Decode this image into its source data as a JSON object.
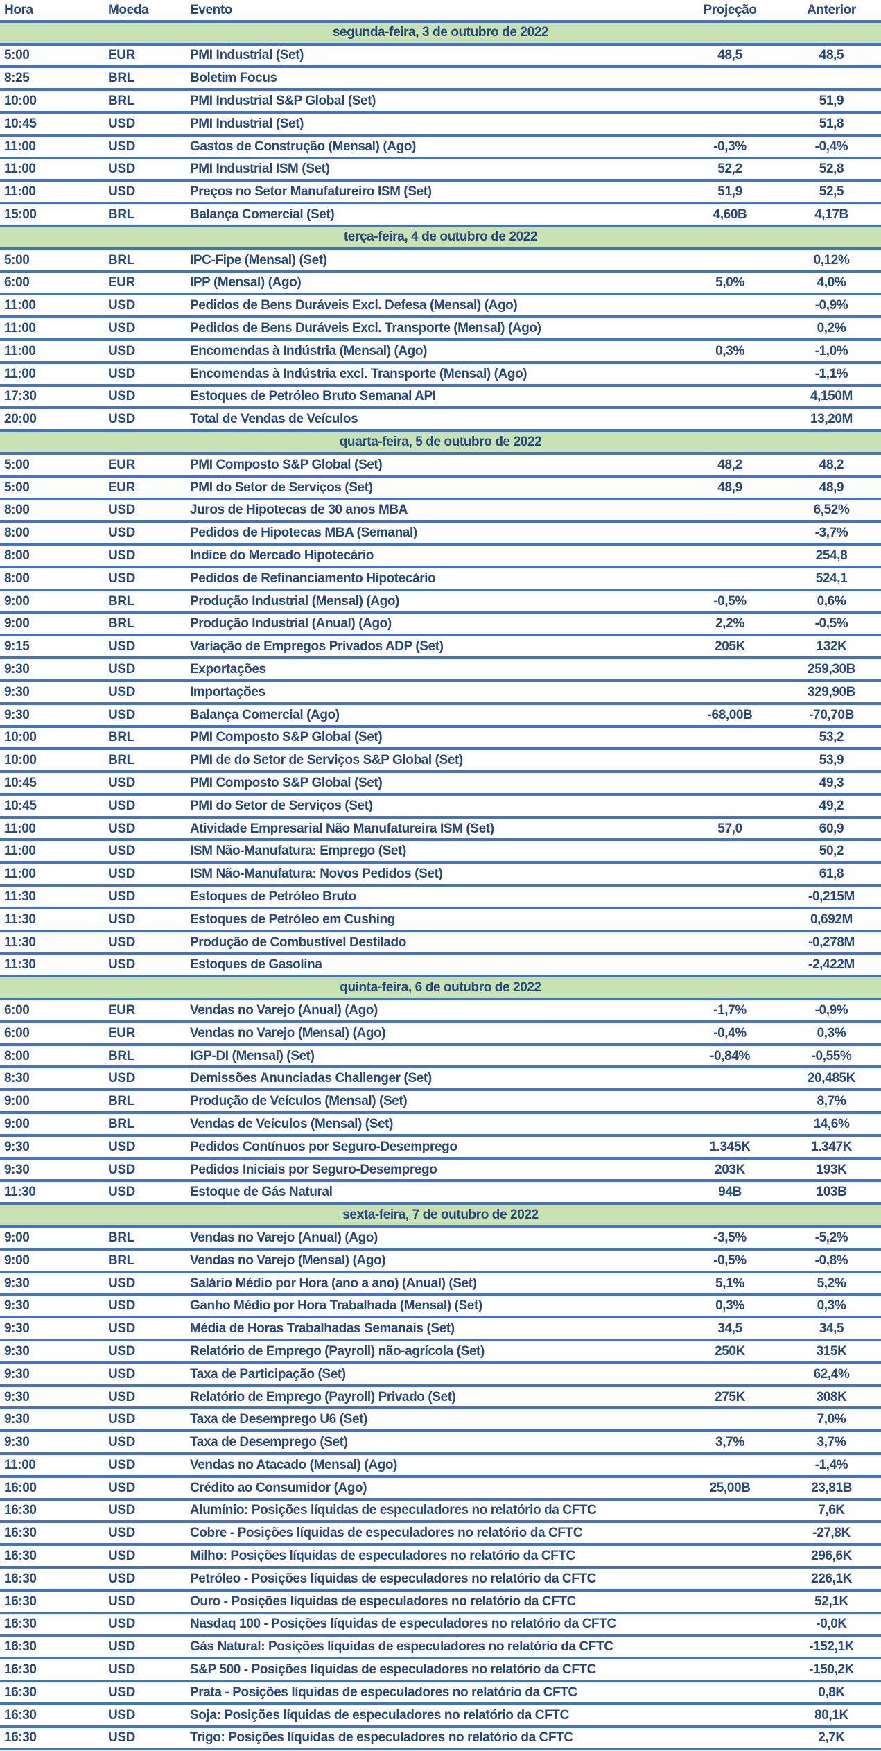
{
  "colors": {
    "border_blue": "#4472C4",
    "day_header_green": "#C8E2B3",
    "text_navy": "#25497F"
  },
  "table": {
    "columns": [
      "Hora",
      "Moeda",
      "Evento",
      "Projeção",
      "Anterior"
    ],
    "days": [
      {
        "header": "segunda-feira, 3 de outubro de 2022",
        "rows": [
          {
            "hora": "5:00",
            "moeda": "EUR",
            "evento": "PMI Industrial (Set)",
            "projecao": "48,5",
            "anterior": "48,5"
          },
          {
            "hora": "8:25",
            "moeda": "BRL",
            "evento": "Boletim Focus",
            "projecao": "",
            "anterior": ""
          },
          {
            "hora": "10:00",
            "moeda": "BRL",
            "evento": "PMI Industrial S&P Global (Set)",
            "projecao": "",
            "anterior": "51,9"
          },
          {
            "hora": "10:45",
            "moeda": "USD",
            "evento": "PMI Industrial (Set)",
            "projecao": "",
            "anterior": "51,8"
          },
          {
            "hora": "11:00",
            "moeda": "USD",
            "evento": "Gastos de Construção (Mensal) (Ago)",
            "projecao": "-0,3%",
            "anterior": "-0,4%"
          },
          {
            "hora": "11:00",
            "moeda": "USD",
            "evento": "PMI Industrial ISM (Set)",
            "projecao": "52,2",
            "anterior": "52,8"
          },
          {
            "hora": "11:00",
            "moeda": "USD",
            "evento": "Preços no Setor Manufatureiro ISM (Set)",
            "projecao": "51,9",
            "anterior": "52,5"
          },
          {
            "hora": "15:00",
            "moeda": "BRL",
            "evento": "Balança Comercial (Set)",
            "projecao": "4,60B",
            "anterior": "4,17B"
          }
        ]
      },
      {
        "header": "terça-feira, 4 de outubro de 2022",
        "rows": [
          {
            "hora": "5:00",
            "moeda": "BRL",
            "evento": "IPC-Fipe (Mensal) (Set)",
            "projecao": "",
            "anterior": "0,12%"
          },
          {
            "hora": "6:00",
            "moeda": "EUR",
            "evento": "IPP (Mensal) (Ago)",
            "projecao": "5,0%",
            "anterior": "4,0%"
          },
          {
            "hora": "11:00",
            "moeda": "USD",
            "evento": "Pedidos de Bens Duráveis Excl. Defesa (Mensal) (Ago)",
            "projecao": "",
            "anterior": "-0,9%"
          },
          {
            "hora": "11:00",
            "moeda": "USD",
            "evento": "Pedidos de Bens Duráveis Excl. Transporte (Mensal) (Ago)",
            "projecao": "",
            "anterior": "0,2%"
          },
          {
            "hora": "11:00",
            "moeda": "USD",
            "evento": "Encomendas à Indústria (Mensal) (Ago)",
            "projecao": "0,3%",
            "anterior": "-1,0%"
          },
          {
            "hora": "11:00",
            "moeda": "USD",
            "evento": "Encomendas à Indústria excl. Transporte (Mensal) (Ago)",
            "projecao": "",
            "anterior": "-1,1%"
          },
          {
            "hora": "17:30",
            "moeda": "USD",
            "evento": "Estoques de Petróleo Bruto Semanal API",
            "projecao": "",
            "anterior": "4,150M"
          },
          {
            "hora": "20:00",
            "moeda": "USD",
            "evento": "Total de Vendas de Veículos",
            "projecao": "",
            "anterior": "13,20M"
          }
        ]
      },
      {
        "header": "quarta-feira, 5 de outubro de 2022",
        "rows": [
          {
            "hora": "5:00",
            "moeda": "EUR",
            "evento": "PMI Composto S&P Global (Set)",
            "projecao": "48,2",
            "anterior": "48,2"
          },
          {
            "hora": "5:00",
            "moeda": "EUR",
            "evento": "PMI do Setor de Serviços (Set)",
            "projecao": "48,9",
            "anterior": "48,9"
          },
          {
            "hora": "8:00",
            "moeda": "USD",
            "evento": "Juros de Hipotecas de 30 anos MBA",
            "projecao": "",
            "anterior": "6,52%"
          },
          {
            "hora": "8:00",
            "moeda": "USD",
            "evento": "Pedidos de Hipotecas MBA (Semanal)",
            "projecao": "",
            "anterior": "-3,7%"
          },
          {
            "hora": "8:00",
            "moeda": "USD",
            "evento": "Índice do Mercado Hipotecário",
            "projecao": "",
            "anterior": "254,8"
          },
          {
            "hora": "8:00",
            "moeda": "USD",
            "evento": "Pedidos de Refinanciamento Hipotecário",
            "projecao": "",
            "anterior": "524,1"
          },
          {
            "hora": "9:00",
            "moeda": "BRL",
            "evento": "Produção Industrial (Mensal) (Ago)",
            "projecao": "-0,5%",
            "anterior": "0,6%"
          },
          {
            "hora": "9:00",
            "moeda": "BRL",
            "evento": "Produção Industrial (Anual) (Ago)",
            "projecao": "2,2%",
            "anterior": "-0,5%"
          },
          {
            "hora": "9:15",
            "moeda": "USD",
            "evento": "Variação de Empregos Privados ADP (Set)",
            "projecao": "205K",
            "anterior": "132K"
          },
          {
            "hora": "9:30",
            "moeda": "USD",
            "evento": "Exportações",
            "projecao": "",
            "anterior": "259,30B"
          },
          {
            "hora": "9:30",
            "moeda": "USD",
            "evento": "Importações",
            "projecao": "",
            "anterior": "329,90B"
          },
          {
            "hora": "9:30",
            "moeda": "USD",
            "evento": "Balança Comercial (Ago)",
            "projecao": "-68,00B",
            "anterior": "-70,70B"
          },
          {
            "hora": "10:00",
            "moeda": "BRL",
            "evento": "PMI Composto S&P Global (Set)",
            "projecao": "",
            "anterior": "53,2"
          },
          {
            "hora": "10:00",
            "moeda": "BRL",
            "evento": "PMI de do Setor de Serviços S&P Global (Set)",
            "projecao": "",
            "anterior": "53,9"
          },
          {
            "hora": "10:45",
            "moeda": "USD",
            "evento": "PMI Composto S&P Global (Set)",
            "projecao": "",
            "anterior": "49,3"
          },
          {
            "hora": "10:45",
            "moeda": "USD",
            "evento": "PMI do Setor de Serviços (Set)",
            "projecao": "",
            "anterior": "49,2"
          },
          {
            "hora": "11:00",
            "moeda": "USD",
            "evento": "Atividade Empresarial Não Manufatureira ISM (Set)",
            "projecao": "57,0",
            "anterior": "60,9"
          },
          {
            "hora": "11:00",
            "moeda": "USD",
            "evento": "ISM Não-Manufatura: Emprego (Set)",
            "projecao": "",
            "anterior": "50,2"
          },
          {
            "hora": "11:00",
            "moeda": "USD",
            "evento": "ISM Não-Manufatura: Novos Pedidos (Set)",
            "projecao": "",
            "anterior": "61,8"
          },
          {
            "hora": "11:30",
            "moeda": "USD",
            "evento": "Estoques de Petróleo Bruto",
            "projecao": "",
            "anterior": "-0,215M"
          },
          {
            "hora": "11:30",
            "moeda": "USD",
            "evento": "Estoques de Petróleo em Cushing",
            "projecao": "",
            "anterior": "0,692M"
          },
          {
            "hora": "11:30",
            "moeda": "USD",
            "evento": "Produção de Combustível Destilado",
            "projecao": "",
            "anterior": "-0,278M"
          },
          {
            "hora": "11:30",
            "moeda": "USD",
            "evento": "Estoques de Gasolina",
            "projecao": "",
            "anterior": "-2,422M"
          }
        ]
      },
      {
        "header": "quinta-feira, 6 de outubro de 2022",
        "rows": [
          {
            "hora": "6:00",
            "moeda": "EUR",
            "evento": "Vendas no Varejo (Anual) (Ago)",
            "projecao": "-1,7%",
            "anterior": "-0,9%"
          },
          {
            "hora": "6:00",
            "moeda": "EUR",
            "evento": "Vendas no Varejo (Mensal) (Ago)",
            "projecao": "-0,4%",
            "anterior": "0,3%"
          },
          {
            "hora": "8:00",
            "moeda": "BRL",
            "evento": "IGP-DI (Mensal) (Set)",
            "projecao": "-0,84%",
            "anterior": "-0,55%"
          },
          {
            "hora": "8:30",
            "moeda": "USD",
            "evento": "Demissões Anunciadas Challenger (Set)",
            "projecao": "",
            "anterior": "20,485K"
          },
          {
            "hora": "9:00",
            "moeda": "BRL",
            "evento": "Produção de Veículos (Mensal) (Set)",
            "projecao": "",
            "anterior": "8,7%"
          },
          {
            "hora": "9:00",
            "moeda": "BRL",
            "evento": "Vendas de Veículos (Mensal) (Set)",
            "projecao": "",
            "anterior": "14,6%"
          },
          {
            "hora": "9:30",
            "moeda": "USD",
            "evento": "Pedidos Contínuos por Seguro-Desemprego",
            "projecao": "1.345K",
            "anterior": "1.347K"
          },
          {
            "hora": "9:30",
            "moeda": "USD",
            "evento": "Pedidos Iniciais por Seguro-Desemprego",
            "projecao": "203K",
            "anterior": "193K"
          },
          {
            "hora": "11:30",
            "moeda": "USD",
            "evento": "Estoque de Gás Natural",
            "projecao": "94B",
            "anterior": "103B"
          }
        ]
      },
      {
        "header": "sexta-feira, 7 de outubro de 2022",
        "rows": [
          {
            "hora": "9:00",
            "moeda": "BRL",
            "evento": "Vendas no Varejo (Anual) (Ago)",
            "projecao": "-3,5%",
            "anterior": "-5,2%"
          },
          {
            "hora": "9:00",
            "moeda": "BRL",
            "evento": "Vendas no Varejo (Mensal) (Ago)",
            "projecao": "-0,5%",
            "anterior": "-0,8%"
          },
          {
            "hora": "9:30",
            "moeda": "USD",
            "evento": "Salário Médio por Hora (ano a ano) (Anual) (Set)",
            "projecao": "5,1%",
            "anterior": "5,2%"
          },
          {
            "hora": "9:30",
            "moeda": "USD",
            "evento": "Ganho Médio por Hora Trabalhada (Mensal) (Set)",
            "projecao": "0,3%",
            "anterior": "0,3%"
          },
          {
            "hora": "9:30",
            "moeda": "USD",
            "evento": "Média de Horas Trabalhadas Semanais (Set)",
            "projecao": "34,5",
            "anterior": "34,5"
          },
          {
            "hora": "9:30",
            "moeda": "USD",
            "evento": "Relatório de Emprego (Payroll) não-agrícola (Set)",
            "projecao": "250K",
            "anterior": "315K"
          },
          {
            "hora": "9:30",
            "moeda": "USD",
            "evento": "Taxa de Participação (Set)",
            "projecao": "",
            "anterior": "62,4%"
          },
          {
            "hora": "9:30",
            "moeda": "USD",
            "evento": "Relatório de Emprego (Payroll) Privado (Set)",
            "projecao": "275K",
            "anterior": "308K"
          },
          {
            "hora": "9:30",
            "moeda": "USD",
            "evento": "Taxa de Desemprego U6 (Set)",
            "projecao": "",
            "anterior": "7,0%"
          },
          {
            "hora": "9:30",
            "moeda": "USD",
            "evento": "Taxa de Desemprego (Set)",
            "projecao": "3,7%",
            "anterior": "3,7%"
          },
          {
            "hora": "11:00",
            "moeda": "USD",
            "evento": "Vendas no Atacado (Mensal) (Ago)",
            "projecao": "",
            "anterior": "-1,4%"
          },
          {
            "hora": "16:00",
            "moeda": "USD",
            "evento": "Crédito ao Consumidor (Ago)",
            "projecao": "25,00B",
            "anterior": "23,81B"
          },
          {
            "hora": "16:30",
            "moeda": "USD",
            "evento": "Alumínio: Posições líquidas de especuladores no relatório da CFTC",
            "projecao": "",
            "anterior": "7,6K"
          },
          {
            "hora": "16:30",
            "moeda": "USD",
            "evento": "Cobre - Posições líquidas de especuladores no relatório da CFTC",
            "projecao": "",
            "anterior": "-27,8K"
          },
          {
            "hora": "16:30",
            "moeda": "USD",
            "evento": "Milho: Posições líquidas de especuladores no relatório da CFTC",
            "projecao": "",
            "anterior": "296,6K"
          },
          {
            "hora": "16:30",
            "moeda": "USD",
            "evento": "Petróleo - Posições líquidas de especuladores no relatório da CFTC",
            "projecao": "",
            "anterior": "226,1K"
          },
          {
            "hora": "16:30",
            "moeda": "USD",
            "evento": "Ouro - Posições líquidas de especuladores no relatório da CFTC",
            "projecao": "",
            "anterior": "52,1K"
          },
          {
            "hora": "16:30",
            "moeda": "USD",
            "evento": "Nasdaq 100 - Posições líquidas de especuladores no relatório da CFTC",
            "projecao": "",
            "anterior": "-0,0K"
          },
          {
            "hora": "16:30",
            "moeda": "USD",
            "evento": "Gás Natural: Posições líquidas de especuladores no relatório da CFTC",
            "projecao": "",
            "anterior": "-152,1K"
          },
          {
            "hora": "16:30",
            "moeda": "USD",
            "evento": "S&P 500 - Posições líquidas de especuladores no relatório da CFTC",
            "projecao": "",
            "anterior": "-150,2K"
          },
          {
            "hora": "16:30",
            "moeda": "USD",
            "evento": "Prata - Posições líquidas de especuladores no relatório da CFTC",
            "projecao": "",
            "anterior": "0,8K"
          },
          {
            "hora": "16:30",
            "moeda": "USD",
            "evento": "Soja: Posições líquidas de especuladores no relatório da CFTC",
            "projecao": "",
            "anterior": "80,1K"
          },
          {
            "hora": "16:30",
            "moeda": "USD",
            "evento": "Trigo: Posições líquidas de especuladores no relatório da CFTC",
            "projecao": "",
            "anterior": "2,7K"
          }
        ]
      }
    ]
  }
}
